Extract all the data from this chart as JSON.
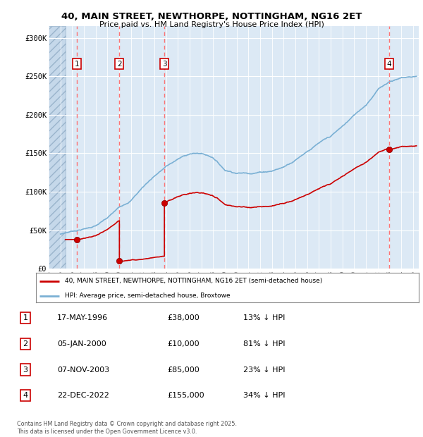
{
  "title_line1": "40, MAIN STREET, NEWTHORPE, NOTTINGHAM, NG16 2ET",
  "title_line2": "Price paid vs. HM Land Registry's House Price Index (HPI)",
  "xlim_start": 1994.0,
  "xlim_end": 2025.5,
  "ylim": [
    0,
    315000
  ],
  "yticks": [
    0,
    50000,
    100000,
    150000,
    200000,
    250000,
    300000
  ],
  "ytick_labels": [
    "£0",
    "£50K",
    "£100K",
    "£150K",
    "£200K",
    "£250K",
    "£300K"
  ],
  "background_color": "#ffffff",
  "plot_bg_color": "#dce9f5",
  "hpi_color": "#7ab0d4",
  "price_color": "#cc0000",
  "vline_color": "#ff6666",
  "transactions": [
    {
      "label": "1",
      "date": 1996.38,
      "price": 38000
    },
    {
      "label": "2",
      "date": 2000.02,
      "price": 10000
    },
    {
      "label": "3",
      "date": 2003.85,
      "price": 85000
    },
    {
      "label": "4",
      "date": 2022.97,
      "price": 155000
    }
  ],
  "legend_property_label": "40, MAIN STREET, NEWTHORPE, NOTTINGHAM, NG16 2ET (semi-detached house)",
  "legend_hpi_label": "HPI: Average price, semi-detached house, Broxtowe",
  "table_rows": [
    {
      "num": "1",
      "date": "17-MAY-1996",
      "price": "£38,000",
      "hpi": "13% ↓ HPI"
    },
    {
      "num": "2",
      "date": "05-JAN-2000",
      "price": "£10,000",
      "hpi": "81% ↓ HPI"
    },
    {
      "num": "3",
      "date": "07-NOV-2003",
      "price": "£85,000",
      "hpi": "23% ↓ HPI"
    },
    {
      "num": "4",
      "date": "22-DEC-2022",
      "price": "£155,000",
      "hpi": "34% ↓ HPI"
    }
  ],
  "footer": "Contains HM Land Registry data © Crown copyright and database right 2025.\nThis data is licensed under the Open Government Licence v3.0.",
  "hatch_end": 1995.42
}
